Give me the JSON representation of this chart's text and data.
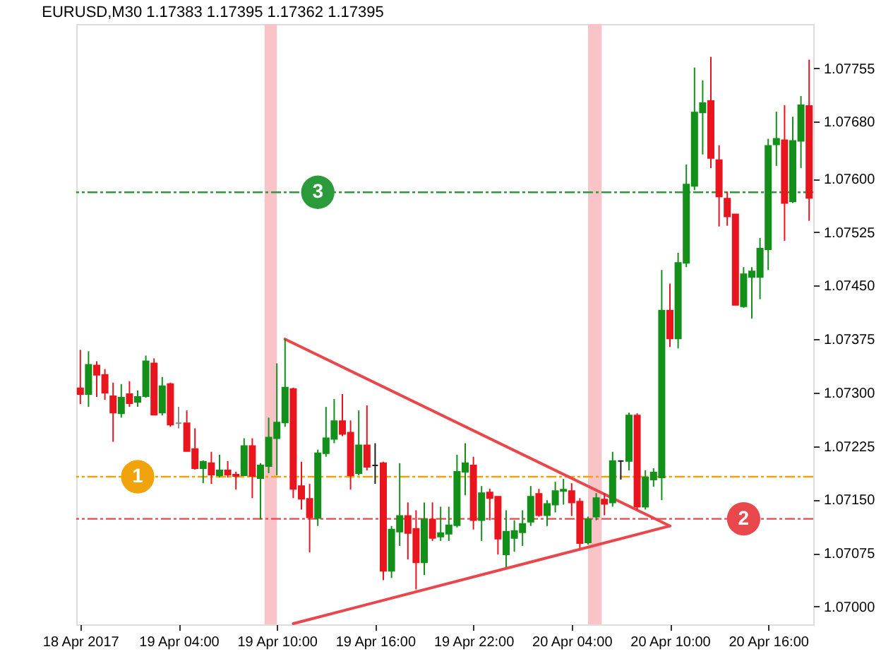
{
  "chart_data": {
    "type": "candlestick",
    "title": "EURUSD,M30 1.17383 1.17395 1.17362 1.17395",
    "x": [
      "2017-04-18T22:00",
      "2017-04-18T22:30",
      "2017-04-18T23:00",
      "2017-04-18T23:30",
      "2017-04-19T00:00",
      "2017-04-19T00:30",
      "2017-04-19T01:00",
      "2017-04-19T01:30",
      "2017-04-19T02:00",
      "2017-04-19T02:30",
      "2017-04-19T03:00",
      "2017-04-19T03:30",
      "2017-04-19T04:00",
      "2017-04-19T04:30",
      "2017-04-19T05:00",
      "2017-04-19T05:30",
      "2017-04-19T06:00",
      "2017-04-19T06:30",
      "2017-04-19T07:00",
      "2017-04-19T07:30",
      "2017-04-19T08:00",
      "2017-04-19T08:30",
      "2017-04-19T09:00",
      "2017-04-19T09:30",
      "2017-04-19T10:00",
      "2017-04-19T10:30",
      "2017-04-19T11:00",
      "2017-04-19T11:30",
      "2017-04-19T12:00",
      "2017-04-19T12:30",
      "2017-04-19T13:00",
      "2017-04-19T13:30",
      "2017-04-19T14:00",
      "2017-04-19T14:30",
      "2017-04-19T15:00",
      "2017-04-19T15:30",
      "2017-04-19T16:00",
      "2017-04-19T16:30",
      "2017-04-19T17:00",
      "2017-04-19T17:30",
      "2017-04-19T18:00",
      "2017-04-19T18:30",
      "2017-04-19T19:00",
      "2017-04-19T19:30",
      "2017-04-19T20:00",
      "2017-04-19T20:30",
      "2017-04-19T21:00",
      "2017-04-19T21:30",
      "2017-04-19T22:00",
      "2017-04-19T22:30",
      "2017-04-19T23:00",
      "2017-04-19T23:30",
      "2017-04-20T00:00",
      "2017-04-20T00:30",
      "2017-04-20T01:00",
      "2017-04-20T01:30",
      "2017-04-20T02:00",
      "2017-04-20T02:30",
      "2017-04-20T03:00",
      "2017-04-20T03:30",
      "2017-04-20T04:00",
      "2017-04-20T04:30",
      "2017-04-20T05:00",
      "2017-04-20T05:30",
      "2017-04-20T06:00",
      "2017-04-20T06:30",
      "2017-04-20T07:00",
      "2017-04-20T07:30",
      "2017-04-20T08:00",
      "2017-04-20T08:30",
      "2017-04-20T09:00",
      "2017-04-20T09:30",
      "2017-04-20T10:00",
      "2017-04-20T10:30",
      "2017-04-20T11:00",
      "2017-04-20T11:30",
      "2017-04-20T12:00",
      "2017-04-20T12:30",
      "2017-04-20T13:00",
      "2017-04-20T13:30",
      "2017-04-20T14:00",
      "2017-04-20T14:30",
      "2017-04-20T15:00",
      "2017-04-20T15:30",
      "2017-04-20T16:00",
      "2017-04-20T16:30",
      "2017-04-20T17:00",
      "2017-04-20T17:30",
      "2017-04-20T18:00",
      "2017-04-20T18:30"
    ],
    "ohlc": [
      [
        1.07306,
        1.0736,
        1.07284,
        1.07298
      ],
      [
        1.07298,
        1.07358,
        1.0728,
        1.07339
      ],
      [
        1.07338,
        1.07344,
        1.07294,
        1.07325
      ],
      [
        1.07325,
        1.07333,
        1.0729,
        1.073
      ],
      [
        1.07295,
        1.07314,
        1.07231,
        1.07272
      ],
      [
        1.07271,
        1.07312,
        1.07265,
        1.07293
      ],
      [
        1.07298,
        1.07316,
        1.0728,
        1.07285
      ],
      [
        1.07287,
        1.07303,
        1.0728,
        1.07294
      ],
      [
        1.07295,
        1.07352,
        1.07293,
        1.07344
      ],
      [
        1.07341,
        1.07348,
        1.07269,
        1.07269
      ],
      [
        1.07272,
        1.07322,
        1.07268,
        1.07309
      ],
      [
        1.07312,
        1.07314,
        1.07252,
        1.07255
      ],
      [
        1.07257,
        1.0728,
        1.0725,
        1.07257
      ],
      [
        1.07257,
        1.07275,
        1.07218,
        1.07218
      ],
      [
        1.07221,
        1.0725,
        1.07192,
        1.07194
      ],
      [
        1.07194,
        1.07205,
        1.07173,
        1.07203
      ],
      [
        1.07201,
        1.07217,
        1.07172,
        1.07185
      ],
      [
        1.07184,
        1.07213,
        1.07181,
        1.07191
      ],
      [
        1.07191,
        1.07204,
        1.07181,
        1.07185
      ],
      [
        1.07185,
        1.07189,
        1.07164,
        1.07183
      ],
      [
        1.07184,
        1.07236,
        1.07183,
        1.07225
      ],
      [
        1.07225,
        1.07236,
        1.07152,
        1.07183
      ],
      [
        1.0718,
        1.07201,
        1.07122,
        1.07198
      ],
      [
        1.07197,
        1.07265,
        1.07187,
        1.07237
      ],
      [
        1.07236,
        1.07341,
        1.07184,
        1.07258
      ],
      [
        1.07258,
        1.07375,
        1.07252,
        1.07307
      ],
      [
        1.07305,
        1.07307,
        1.07152,
        1.07165
      ],
      [
        1.07169,
        1.07203,
        1.07136,
        1.07151
      ],
      [
        1.07151,
        1.07172,
        1.07076,
        1.07125
      ],
      [
        1.07124,
        1.0722,
        1.07113,
        1.07215
      ],
      [
        1.07215,
        1.0728,
        1.0721,
        1.07236
      ],
      [
        1.07235,
        1.07291,
        1.07229,
        1.0726
      ],
      [
        1.0726,
        1.07298,
        1.07239,
        1.07242
      ],
      [
        1.07244,
        1.07261,
        1.07164,
        1.07184
      ],
      [
        1.07187,
        1.07275,
        1.07184,
        1.07226
      ],
      [
        1.07226,
        1.07282,
        1.07191,
        1.07196
      ],
      [
        1.07198,
        1.07229,
        1.07172,
        1.07198
      ],
      [
        1.07201,
        1.07203,
        1.07037,
        1.0705
      ],
      [
        1.0705,
        1.07113,
        1.0704,
        1.07108
      ],
      [
        1.07105,
        1.07201,
        1.07085,
        1.07127
      ],
      [
        1.07127,
        1.07146,
        1.07066,
        1.07103
      ],
      [
        1.07109,
        1.07135,
        1.07024,
        1.07062
      ],
      [
        1.07062,
        1.07146,
        1.07044,
        1.07122
      ],
      [
        1.07122,
        1.07146,
        1.07092,
        1.07096
      ],
      [
        1.07098,
        1.0714,
        1.07092,
        1.07103
      ],
      [
        1.07102,
        1.0714,
        1.07092,
        1.07114
      ],
      [
        1.07114,
        1.07213,
        1.07111,
        1.07189
      ],
      [
        1.07189,
        1.07229,
        1.07156,
        1.07201
      ],
      [
        1.07198,
        1.0721,
        1.07108,
        1.07121
      ],
      [
        1.07121,
        1.07169,
        1.07092,
        1.07159
      ],
      [
        1.0716,
        1.07165,
        1.07121,
        1.07152
      ],
      [
        1.07154,
        1.07154,
        1.07073,
        1.07095
      ],
      [
        1.07073,
        1.07135,
        1.07055,
        1.07105
      ],
      [
        1.07096,
        1.07121,
        1.07077,
        1.07106
      ],
      [
        1.07104,
        1.07135,
        1.07085,
        1.07116
      ],
      [
        1.07119,
        1.07169,
        1.07113,
        1.07154
      ],
      [
        1.07158,
        1.07165,
        1.07126,
        1.07128
      ],
      [
        1.07128,
        1.07149,
        1.07113,
        1.07144
      ],
      [
        1.07143,
        1.07175,
        1.07132,
        1.07162
      ],
      [
        1.07162,
        1.07179,
        1.07143,
        1.07164
      ],
      [
        1.07162,
        1.07173,
        1.07127,
        1.07146
      ],
      [
        1.07147,
        1.07152,
        1.07082,
        1.07089
      ],
      [
        1.0709,
        1.07126,
        1.07087,
        1.07122
      ],
      [
        1.07126,
        1.07159,
        1.07121,
        1.07152
      ],
      [
        1.0715,
        1.07159,
        1.07128,
        1.07144
      ],
      [
        1.07146,
        1.07217,
        1.0714,
        1.07204
      ],
      [
        1.07204,
        1.07205,
        1.07178,
        1.07204
      ],
      [
        1.07204,
        1.07272,
        1.07191,
        1.07268
      ],
      [
        1.07268,
        1.07271,
        1.07136,
        1.0714
      ],
      [
        1.0714,
        1.07191,
        1.07136,
        1.07181
      ],
      [
        1.07178,
        1.07194,
        1.07168,
        1.07188
      ],
      [
        1.07181,
        1.07472,
        1.07149,
        1.07415
      ],
      [
        1.07415,
        1.07453,
        1.07364,
        1.07376
      ],
      [
        1.07376,
        1.07496,
        1.07362,
        1.07482
      ],
      [
        1.07482,
        1.0762,
        1.07476,
        1.07592
      ],
      [
        1.0759,
        1.07756,
        1.07584,
        1.07693
      ],
      [
        1.07693,
        1.07738,
        1.07634,
        1.07706
      ],
      [
        1.07709,
        1.07771,
        1.07615,
        1.07629
      ],
      [
        1.07626,
        1.07647,
        1.07533,
        1.07575
      ],
      [
        1.07572,
        1.07582,
        1.07534,
        1.07547
      ],
      [
        1.0755,
        1.0755,
        1.07423,
        1.07423
      ],
      [
        1.07421,
        1.07476,
        1.07419,
        1.07466
      ],
      [
        1.07462,
        1.07476,
        1.07404,
        1.0747
      ],
      [
        1.07462,
        1.07517,
        1.07431,
        1.07502
      ],
      [
        1.07501,
        1.07656,
        1.07472,
        1.07646
      ],
      [
        1.07648,
        1.07694,
        1.07618,
        1.07656
      ],
      [
        1.07654,
        1.07703,
        1.07513,
        1.07566
      ],
      [
        1.07568,
        1.07687,
        1.07566,
        1.07653
      ],
      [
        1.07653,
        1.07716,
        1.07615,
        1.07703
      ],
      [
        1.07702,
        1.07767,
        1.07541,
        1.07573
      ]
    ],
    "colors": [
      "#e8151f",
      "#13901a",
      "#e8151f",
      "#e8151f",
      "#e8151f",
      "#13901a",
      "#e8151f",
      "#13901a",
      "#13901a",
      "#e8151f",
      "#13901a",
      "#e8151f",
      "#8c8c8c",
      "#e8151f",
      "#e8151f",
      "#13901a",
      "#e8151f",
      "#13901a",
      "#e8151f",
      "#e8151f",
      "#13901a",
      "#e8151f",
      "#13901a",
      "#13901a",
      "#13901a",
      "#13901a",
      "#e8151f",
      "#e8151f",
      "#e8151f",
      "#13901a",
      "#13901a",
      "#13901a",
      "#e8151f",
      "#e8151f",
      "#13901a",
      "#e8151f",
      "#202020",
      "#e8151f",
      "#13901a",
      "#13901a",
      "#e8151f",
      "#e8151f",
      "#13901a",
      "#e8151f",
      "#13901a",
      "#13901a",
      "#13901a",
      "#13901a",
      "#e8151f",
      "#13901a",
      "#e8151f",
      "#e8151f",
      "#13901a",
      "#13901a",
      "#13901a",
      "#13901a",
      "#e8151f",
      "#13901a",
      "#13901a",
      "#13901a",
      "#e8151f",
      "#e8151f",
      "#13901a",
      "#13901a",
      "#e8151f",
      "#13901a",
      "#202020",
      "#13901a",
      "#e8151f",
      "#13901a",
      "#13901a",
      "#13901a",
      "#e8151f",
      "#13901a",
      "#13901a",
      "#13901a",
      "#13901a",
      "#e8151f",
      "#e8151f",
      "#e8151f",
      "#e8151f",
      "#13901a",
      "#13901a",
      "#13901a",
      "#13901a",
      "#13901a",
      "#e8151f",
      "#13901a",
      "#13901a",
      "#e8151f"
    ],
    "series": [
      {
        "type": "line",
        "color": "#e8474c",
        "x": [
          "2017-04-19T10:30",
          "2017-04-20T10:00"
        ],
        "values": [
          1.07375,
          1.07113
        ]
      },
      {
        "type": "line",
        "color": "#e8474c",
        "x": [
          "2017-04-19T11:00",
          "2017-04-20T10:00"
        ],
        "values": [
          1.06976,
          1.07113
        ]
      }
    ],
    "ref_lines": [
      {
        "axis": "y",
        "value": 1.07182,
        "color": "#f0a30a",
        "line_style": "dashed"
      },
      {
        "axis": "y",
        "value": 1.07123,
        "color": "#e8474c",
        "line_style": "dashed"
      },
      {
        "axis": "y",
        "value": 1.07581,
        "color": "#2a9a3a",
        "line_style": "dashed"
      }
    ],
    "bands": [
      {
        "axis": "x",
        "from": "2017-04-19T09:15",
        "to": "2017-04-19T10:00",
        "color": "#f9c4c8"
      },
      {
        "axis": "x",
        "from": "2017-04-20T05:00",
        "to": "2017-04-20T05:50",
        "color": "#f9c4c8"
      }
    ],
    "annotations": [
      {
        "text": "1",
        "x": "2017-04-19T01:30",
        "y": 1.07182
      },
      {
        "text": "2",
        "x": "2017-04-20T14:30",
        "y": 1.07123
      },
      {
        "text": "3",
        "x": "2017-04-19T12:30",
        "y": 1.07581
      }
    ],
    "xlim": [
      "2017-04-18T21:45",
      "2017-04-20T18:45"
    ],
    "xticks": [
      {
        "value": "2017-04-18T22:00",
        "label": "18 Apr 2017"
      },
      {
        "value": "2017-04-19T04:00",
        "label": "19 Apr 04:00"
      },
      {
        "value": "2017-04-19T10:00",
        "label": "19 Apr 10:00"
      },
      {
        "value": "2017-04-19T16:00",
        "label": "19 Apr 16:00"
      },
      {
        "value": "2017-04-19T22:00",
        "label": "19 Apr 22:00"
      },
      {
        "value": "2017-04-20T04:00",
        "label": "20 Apr 04:00"
      },
      {
        "value": "2017-04-20T10:00",
        "label": "20 Apr 10:00"
      },
      {
        "value": "2017-04-20T16:00",
        "label": "20 Apr 16:00"
      }
    ],
    "ylim": [
      1.06975,
      1.07817
    ],
    "yticks": [
      {
        "value": 1.07,
        "label": "1.07000"
      },
      1.07075,
      {
        "value": 1.0715,
        "label": "1.07150"
      },
      1.07225,
      {
        "value": 1.073,
        "label": "1.07300"
      },
      1.07375,
      {
        "value": 1.0745,
        "label": "1.07450"
      },
      1.07525,
      {
        "value": 1.076,
        "label": "1.07600"
      },
      {
        "value": 1.0768,
        "label": "1.07680"
      },
      1.07755
    ],
    "grid": false
  }
}
